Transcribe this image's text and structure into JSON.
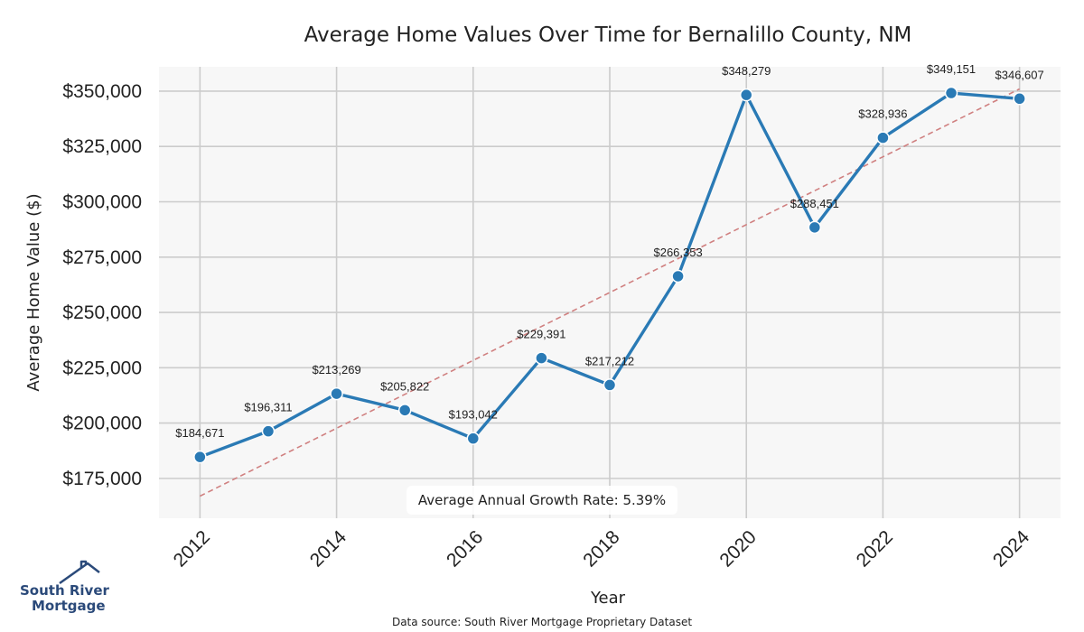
{
  "chart_data": {
    "type": "line",
    "title": "Average Home Values Over Time for Bernalillo County, NM",
    "xlabel": "Year",
    "ylabel": "Average Home Value ($)",
    "x": [
      2012,
      2013,
      2014,
      2015,
      2016,
      2017,
      2018,
      2019,
      2020,
      2021,
      2022,
      2023,
      2024
    ],
    "values": [
      184671,
      196311,
      213269,
      205822,
      193042,
      229391,
      217212,
      266353,
      348279,
      288451,
      328936,
      349151,
      346607
    ],
    "data_labels": [
      "$184,671",
      "$196,311",
      "$213,269",
      "$205,822",
      "$193,042",
      "$229,391",
      "$217,212",
      "$266,353",
      "$348,279",
      "$288,451",
      "$328,936",
      "$349,151",
      "$346,607"
    ],
    "xticks": [
      "2012",
      "2014",
      "2016",
      "2018",
      "2020",
      "2022",
      "2024"
    ],
    "yticks": [
      175000,
      200000,
      225000,
      250000,
      275000,
      300000,
      325000,
      350000
    ],
    "ytick_labels": [
      "$175,000",
      "$200,000",
      "$225,000",
      "$250,000",
      "$275,000",
      "$300,000",
      "$325,000",
      "$350,000"
    ],
    "xlim": [
      2011.4,
      2024.6
    ],
    "ylim": [
      157000,
      361000
    ],
    "trendline": {
      "x": [
        2012,
        2024
      ],
      "y": [
        167000,
        351000
      ],
      "color": "#d08080",
      "style": "dashed"
    },
    "grid": true,
    "line_color": "#2a7ab5",
    "background_color": "#f7f7f7",
    "annotation": "Average Annual Growth Rate: 5.39%"
  },
  "footer": {
    "source": "Data source: South River Mortgage Proprietary Dataset"
  },
  "logo": {
    "line1": "South River",
    "line2": "Mortgage",
    "icon": "house-roof-icon",
    "color": "#2b4a7a"
  }
}
